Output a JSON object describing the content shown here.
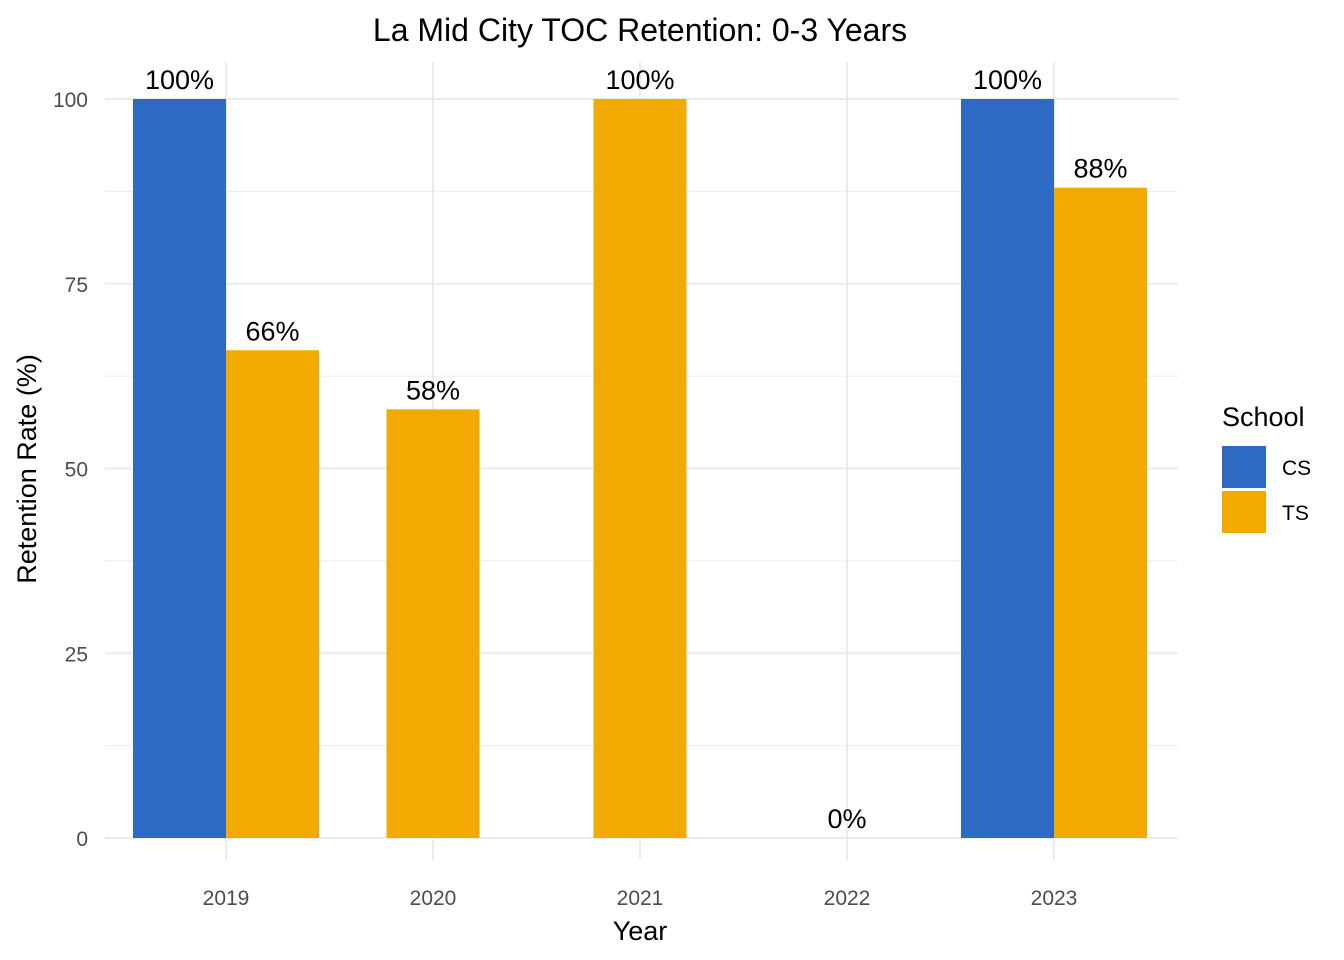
{
  "chart_data": {
    "type": "bar",
    "title": "La Mid City TOC Retention: 0-3 Years",
    "xlabel": "Year",
    "ylabel": "Retention Rate (%)",
    "categories": [
      "2019",
      "2020",
      "2021",
      "2022",
      "2023"
    ],
    "series": [
      {
        "name": "CS",
        "color": "#2E69C4",
        "values": [
          100,
          null,
          null,
          null,
          100
        ],
        "labels": [
          "100%",
          null,
          null,
          null,
          "100%"
        ]
      },
      {
        "name": "TS",
        "color": "#F2AA00",
        "values": [
          66,
          58,
          100,
          0,
          88
        ],
        "labels": [
          "66%",
          "58%",
          "100%",
          "0%",
          "88%"
        ]
      }
    ],
    "ylim": [
      0,
      100
    ],
    "yticks": [
      0,
      25,
      50,
      75,
      100
    ],
    "grid": true,
    "legend": {
      "title": "School",
      "position": "right"
    }
  }
}
